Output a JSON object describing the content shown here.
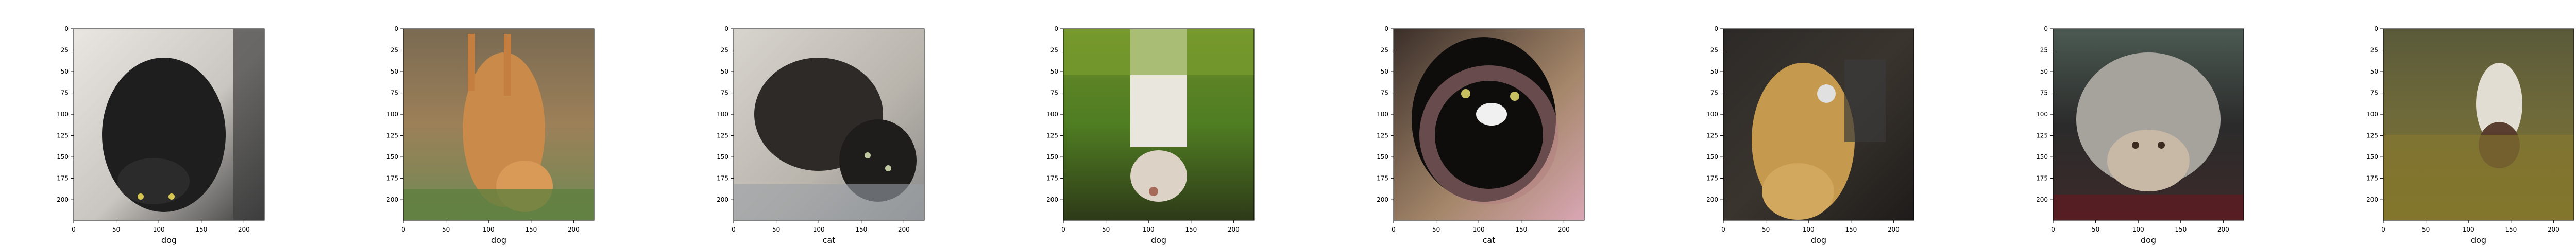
{
  "chart_data": {
    "type": "image-grid",
    "axes": [
      {
        "xlabel": "dog",
        "xlim": [
          0,
          224
        ],
        "ylim": [
          0,
          224
        ],
        "xticks": [
          0,
          50,
          100,
          150,
          200
        ],
        "yticks": [
          0,
          25,
          50,
          75,
          100,
          125,
          150,
          175,
          200
        ],
        "image": "upside-down black dog"
      },
      {
        "xlabel": "dog",
        "xlim": [
          0,
          224
        ],
        "ylim": [
          0,
          224
        ],
        "xticks": [
          0,
          50,
          100,
          150,
          200
        ],
        "yticks": [
          0,
          25,
          50,
          75,
          100,
          125,
          150,
          175,
          200
        ],
        "image": "upside-down tan puppy in grass"
      },
      {
        "xlabel": "cat",
        "xlim": [
          0,
          224
        ],
        "ylim": [
          0,
          224
        ],
        "xticks": [
          0,
          50,
          100,
          150,
          200
        ],
        "yticks": [
          0,
          25,
          50,
          75,
          100,
          125,
          150,
          175,
          200
        ],
        "image": "upside-down dark cat"
      },
      {
        "xlabel": "dog",
        "xlim": [
          0,
          224
        ],
        "ylim": [
          0,
          224
        ],
        "xticks": [
          0,
          50,
          100,
          150,
          200
        ],
        "yticks": [
          0,
          25,
          50,
          75,
          100,
          125,
          150,
          175,
          200
        ],
        "image": "upside-down white dog on green grass"
      },
      {
        "xlabel": "cat",
        "xlim": [
          0,
          224
        ],
        "ylim": [
          0,
          224
        ],
        "xticks": [
          0,
          50,
          100,
          150,
          200
        ],
        "yticks": [
          0,
          25,
          50,
          75,
          100,
          125,
          150,
          175,
          200
        ],
        "image": "upside-down black and white cat"
      },
      {
        "xlabel": "dog",
        "xlim": [
          0,
          224
        ],
        "ylim": [
          0,
          224
        ],
        "xticks": [
          0,
          50,
          100,
          150,
          200
        ],
        "yticks": [
          0,
          25,
          50,
          75,
          100,
          125,
          150,
          175,
          200
        ],
        "image": "upside-down golden dog with tag"
      },
      {
        "xlabel": "dog",
        "xlim": [
          0,
          224
        ],
        "ylim": [
          0,
          224
        ],
        "xticks": [
          0,
          50,
          100,
          150,
          200
        ],
        "yticks": [
          0,
          25,
          50,
          75,
          100,
          125,
          150,
          175,
          200
        ],
        "image": "upside-down fluffy grey dog"
      },
      {
        "xlabel": "dog",
        "xlim": [
          0,
          224
        ],
        "ylim": [
          0,
          224
        ],
        "xticks": [
          0,
          50,
          100,
          150,
          200
        ],
        "yticks": [
          0,
          25,
          50,
          75,
          100,
          125,
          150,
          175,
          200
        ],
        "image": "upside-down small dog on olive floor"
      }
    ]
  }
}
